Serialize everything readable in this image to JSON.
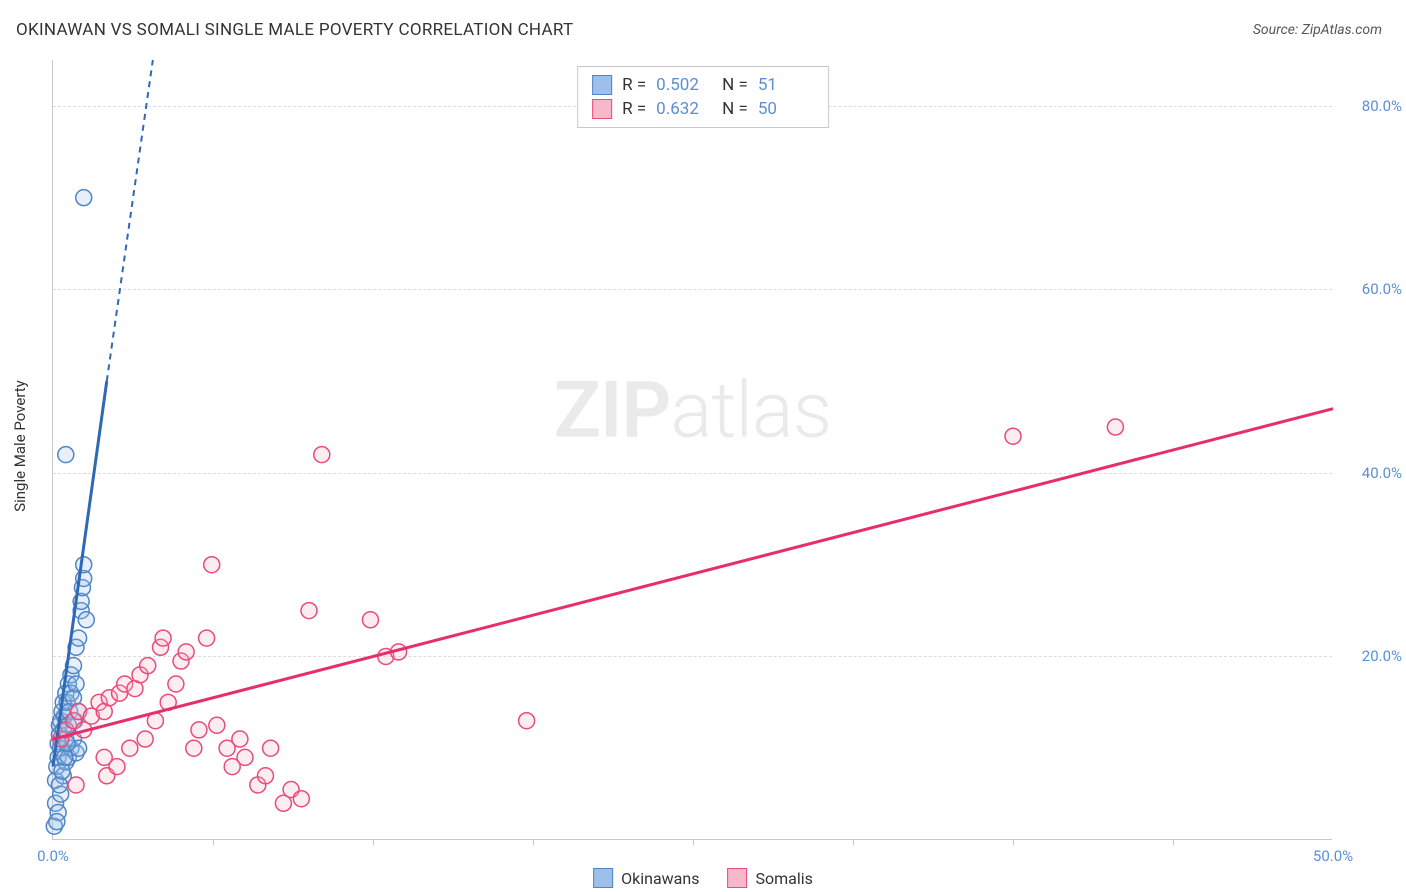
{
  "title": "OKINAWAN VS SOMALI SINGLE MALE POVERTY CORRELATION CHART",
  "source": "Source: ZipAtlas.com",
  "y_axis_label": "Single Male Poverty",
  "watermark_a": "ZIP",
  "watermark_b": "atlas",
  "chart": {
    "type": "scatter",
    "background_color": "#ffffff",
    "grid_color": "#dcdcdc",
    "axis_color": "#c8c8c8",
    "xlim": [
      0,
      50
    ],
    "ylim": [
      0,
      85
    ],
    "y_ticks": [
      {
        "v": 20,
        "label": "20.0%"
      },
      {
        "v": 40,
        "label": "40.0%"
      },
      {
        "v": 60,
        "label": "60.0%"
      },
      {
        "v": 80,
        "label": "80.0%"
      }
    ],
    "x_ticks": [
      {
        "v": 0,
        "label": "0.0%"
      },
      {
        "v": 50,
        "label": "50.0%"
      }
    ],
    "x_minor_ticks": [
      6.25,
      12.5,
      18.75,
      25,
      31.25,
      37.5,
      43.75
    ],
    "tick_color": "#5b8fd6",
    "tick_fontsize": 15,
    "marker_radius": 8,
    "marker_stroke_width": 1.5,
    "marker_fill_opacity": 0.25,
    "trend_width_solid": 3,
    "trend_width_dash": 2,
    "trend_dash": "6,5"
  },
  "legend_top": {
    "rows": [
      {
        "swatch_fill": "#9cc0ea",
        "swatch_stroke": "#4f86c6",
        "r_label": "R =",
        "r_val": "0.502",
        "n_label": "N =",
        "n_val": "51"
      },
      {
        "swatch_fill": "#f7b9c9",
        "swatch_stroke": "#e94b7a",
        "r_label": "R =",
        "r_val": "0.632",
        "n_label": "N =",
        "n_val": "50"
      }
    ]
  },
  "legend_bottom": {
    "items": [
      {
        "swatch_fill": "#9cc0ea",
        "swatch_stroke": "#4f86c6",
        "label": "Okinawans"
      },
      {
        "swatch_fill": "#f7b9c9",
        "swatch_stroke": "#e94b7a",
        "label": "Somalis"
      }
    ]
  },
  "series": [
    {
      "name": "Okinawans",
      "color_stroke": "#4f86c6",
      "color_fill": "#9cc0ea",
      "trend_color": "#2f68b5",
      "trend": {
        "x1": 0,
        "y1": 8,
        "x2_solid": 2.1,
        "y2_solid": 50,
        "x2_dash": 3.9,
        "y2_dash": 85
      },
      "points": [
        [
          0.05,
          1.5
        ],
        [
          0.1,
          4
        ],
        [
          0.1,
          6.5
        ],
        [
          0.15,
          8
        ],
        [
          0.2,
          9
        ],
        [
          0.2,
          10.5
        ],
        [
          0.25,
          11.5
        ],
        [
          0.25,
          12.5
        ],
        [
          0.3,
          10
        ],
        [
          0.3,
          13
        ],
        [
          0.35,
          14
        ],
        [
          0.4,
          15
        ],
        [
          0.4,
          12
        ],
        [
          0.45,
          13.5
        ],
        [
          0.5,
          11
        ],
        [
          0.5,
          16
        ],
        [
          0.55,
          15
        ],
        [
          0.6,
          17
        ],
        [
          0.6,
          12.5
        ],
        [
          0.65,
          14
        ],
        [
          0.7,
          16
        ],
        [
          0.7,
          18
        ],
        [
          0.8,
          15.5
        ],
        [
          0.8,
          19
        ],
        [
          0.85,
          13
        ],
        [
          0.9,
          17
        ],
        [
          0.9,
          21
        ],
        [
          1.0,
          14
        ],
        [
          1.0,
          22
        ],
        [
          1.1,
          25
        ],
        [
          1.1,
          26
        ],
        [
          1.15,
          27.5
        ],
        [
          1.2,
          28.5
        ],
        [
          1.2,
          30
        ],
        [
          1.3,
          24
        ],
        [
          0.4,
          7
        ],
        [
          0.5,
          8.5
        ],
        [
          0.6,
          9
        ],
        [
          0.3,
          5
        ],
        [
          0.2,
          3
        ],
        [
          0.15,
          2
        ],
        [
          0.7,
          10
        ],
        [
          0.8,
          11
        ],
        [
          0.9,
          9.5
        ],
        [
          1.0,
          10
        ],
        [
          0.5,
          42
        ],
        [
          1.2,
          70
        ],
        [
          0.25,
          6
        ],
        [
          0.35,
          7.5
        ],
        [
          0.45,
          9
        ],
        [
          0.55,
          10.5
        ]
      ]
    },
    {
      "name": "Somalis",
      "color_stroke": "#e94b7a",
      "color_fill": "#f7b9c9",
      "trend_color": "#e82e6a",
      "trend": {
        "x1": 0,
        "y1": 11,
        "x2_solid": 50,
        "y2_solid": 47,
        "x2_dash": 50,
        "y2_dash": 47
      },
      "points": [
        [
          0.3,
          11
        ],
        [
          0.5,
          12
        ],
        [
          0.8,
          13
        ],
        [
          0.9,
          6
        ],
        [
          1.0,
          14
        ],
        [
          1.2,
          12
        ],
        [
          1.5,
          13.5
        ],
        [
          1.8,
          15
        ],
        [
          2.0,
          14
        ],
        [
          2.1,
          7
        ],
        [
          2.2,
          15.5
        ],
        [
          2.5,
          8
        ],
        [
          2.6,
          16
        ],
        [
          2.8,
          17
        ],
        [
          3.0,
          10
        ],
        [
          3.2,
          16.5
        ],
        [
          3.4,
          18
        ],
        [
          3.6,
          11
        ],
        [
          3.7,
          19
        ],
        [
          4.0,
          13
        ],
        [
          4.2,
          21
        ],
        [
          4.3,
          22
        ],
        [
          4.5,
          15
        ],
        [
          4.8,
          17
        ],
        [
          5.0,
          19.5
        ],
        [
          5.2,
          20.5
        ],
        [
          5.5,
          10
        ],
        [
          5.7,
          12
        ],
        [
          6.0,
          22
        ],
        [
          6.2,
          30
        ],
        [
          6.4,
          12.5
        ],
        [
          6.8,
          10
        ],
        [
          7.0,
          8
        ],
        [
          7.3,
          11
        ],
        [
          7.5,
          9
        ],
        [
          8.0,
          6
        ],
        [
          8.3,
          7
        ],
        [
          8.5,
          10
        ],
        [
          9.0,
          4
        ],
        [
          9.3,
          5.5
        ],
        [
          9.7,
          4.5
        ],
        [
          10.0,
          25
        ],
        [
          10.5,
          42
        ],
        [
          12.4,
          24
        ],
        [
          13.0,
          20
        ],
        [
          13.5,
          20.5
        ],
        [
          18.5,
          13
        ],
        [
          37.5,
          44
        ],
        [
          41.5,
          45
        ],
        [
          2.0,
          9
        ]
      ]
    }
  ]
}
